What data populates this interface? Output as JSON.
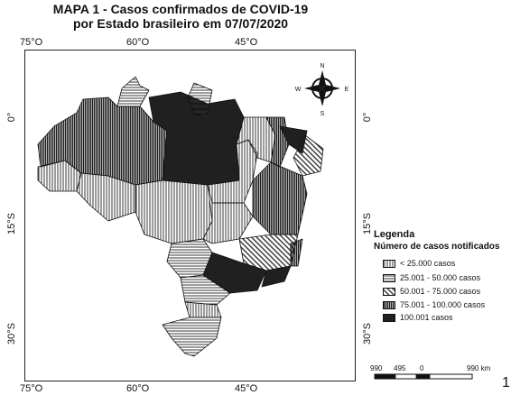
{
  "title_line1": "MAPA 1 - Casos confirmados de COVID-19",
  "title_line2": "por Estado brasileiro em 07/07/2020",
  "coords": {
    "lon_75": "75°O",
    "lon_60": "60°O",
    "lon_45": "45°O",
    "lat_0": "0°",
    "lat_15": "15°S",
    "lat_30": "30°S"
  },
  "compass": {
    "n": "N",
    "s": "S",
    "e": "E",
    "w": "W"
  },
  "legend": {
    "title": "Legenda",
    "subtitle": "Número de casos notificados",
    "items": [
      {
        "label": "< 25.000 casos",
        "pattern": "vertical-lines"
      },
      {
        "label": "25.001 - 50.000 casos",
        "pattern": "horizontal-lines"
      },
      {
        "label": "50.001 - 75.000 casos",
        "pattern": "diagonal-lines"
      },
      {
        "label": "75.001 - 100.000 casos",
        "pattern": "dense-vertical-lines"
      },
      {
        "label": "100.001 casos",
        "pattern": "dense-horizontal-lines"
      }
    ]
  },
  "scale": {
    "l0": "990",
    "l1": "495",
    "l2": "0",
    "l3": "990 km"
  },
  "page_number": "1"
}
